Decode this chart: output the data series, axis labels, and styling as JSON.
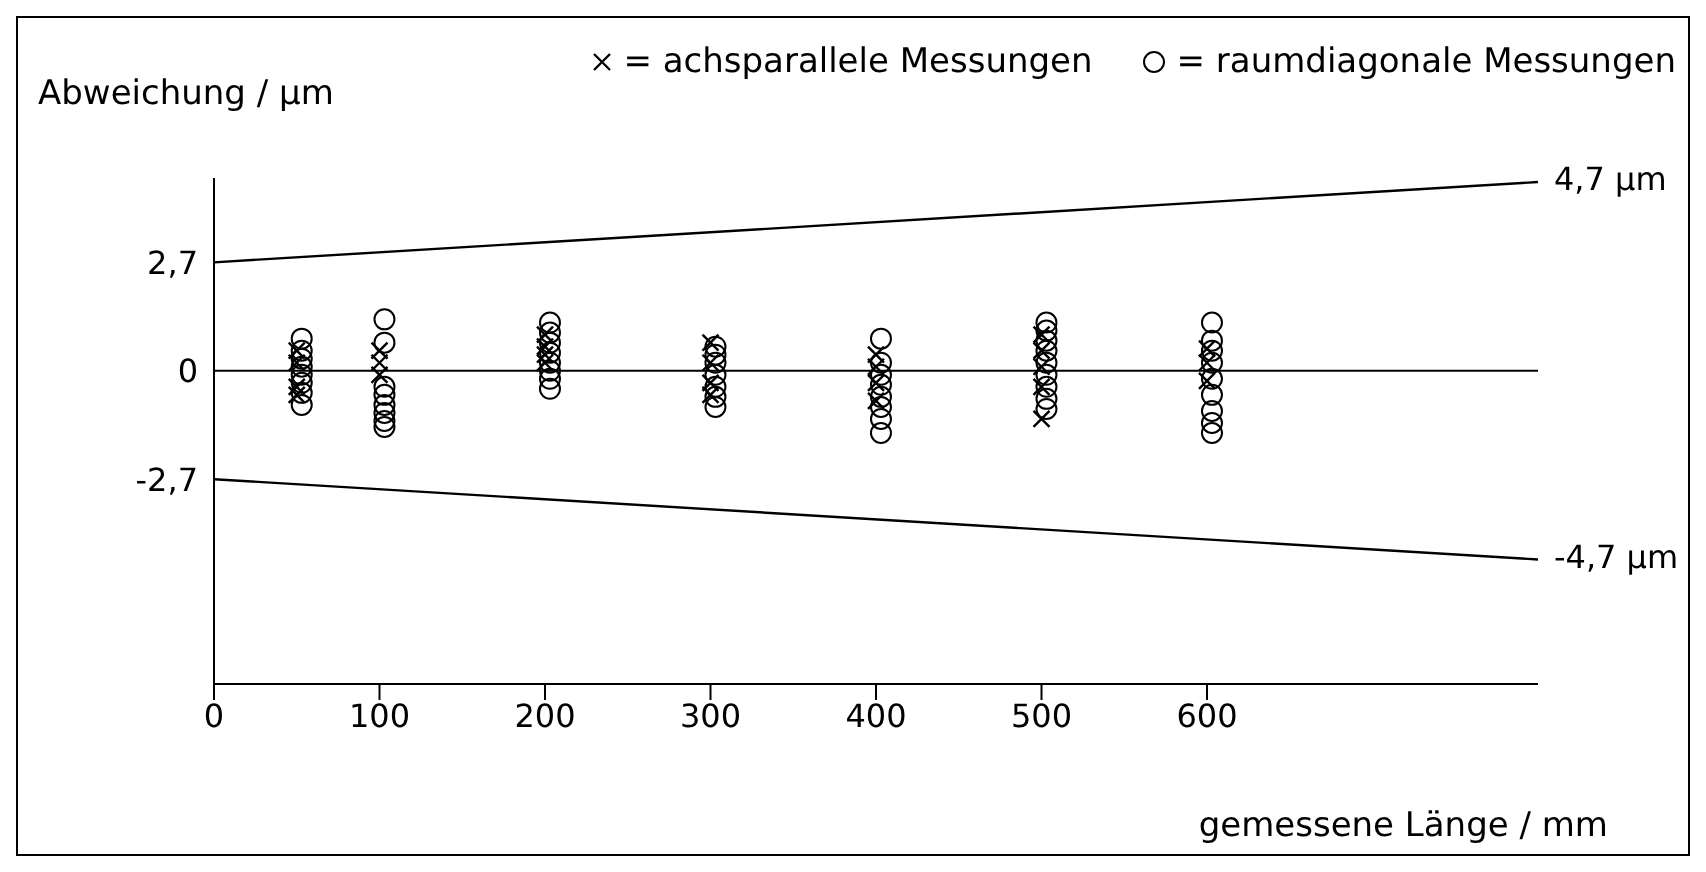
{
  "chart_data": {
    "type": "scatter",
    "ylabel": "Abweichung / µm",
    "xlabel": "gemessene Länge / mm",
    "xlim": [
      0,
      800
    ],
    "xticks": [
      0,
      100,
      200,
      300,
      400,
      500,
      600
    ],
    "ylim": [
      -7.8,
      4.8
    ],
    "yticks": [
      {
        "value": 2.7,
        "label": "2,7"
      },
      0,
      {
        "value": -2.7,
        "label": "-2,7"
      }
    ],
    "grid": false,
    "legend": "top right",
    "series": [
      {
        "name": "= achsparallele Messungen",
        "type": "scatter",
        "marker": "cross",
        "color": "#000000",
        "x": [
          50,
          50,
          50,
          50,
          100,
          100,
          100,
          200,
          200,
          200,
          200,
          300,
          300,
          300,
          300,
          400,
          400,
          400,
          400,
          500,
          500,
          500,
          500,
          500,
          600,
          600,
          600
        ],
        "values": [
          0.5,
          0.2,
          -0.4,
          -0.6,
          0.5,
          0.2,
          -0.1,
          0.9,
          0.6,
          0.4,
          0.2,
          0.7,
          0.2,
          -0.3,
          -0.6,
          0.4,
          0.1,
          -0.3,
          -0.75,
          0.9,
          0.5,
          0.1,
          -0.4,
          -1.2,
          0.55,
          0.2,
          -0.25
        ]
      },
      {
        "name": "= raumdiagonale Messungen",
        "type": "scatter",
        "marker": "circle",
        "color": "#000000",
        "x": [
          53,
          53,
          53,
          53,
          53,
          53,
          53,
          53,
          103,
          103,
          103,
          103,
          103,
          103,
          103,
          103,
          203,
          203,
          203,
          203,
          203,
          203,
          203,
          203,
          303,
          303,
          303,
          303,
          303,
          303,
          303,
          403,
          403,
          403,
          403,
          403,
          403,
          403,
          403,
          503,
          503,
          503,
          503,
          503,
          503,
          503,
          503,
          503,
          603,
          603,
          603,
          603,
          603,
          603,
          603,
          603,
          603
        ],
        "values": [
          0.8,
          0.5,
          0.3,
          0.1,
          -0.1,
          -0.3,
          -0.55,
          -0.85,
          1.28,
          0.7,
          -0.4,
          -0.6,
          -0.85,
          -1.05,
          -1.25,
          -1.4,
          1.2,
          0.95,
          0.7,
          0.45,
          0.2,
          0,
          -0.2,
          -0.45,
          0.6,
          0.4,
          0.2,
          -0.1,
          -0.4,
          -0.65,
          -0.9,
          0.8,
          0.2,
          -0.1,
          -0.35,
          -0.65,
          -0.9,
          -1.2,
          -1.55,
          1.2,
          1.0,
          0.75,
          0.5,
          0.2,
          -0.1,
          -0.4,
          -0.7,
          -0.95,
          1.2,
          0.75,
          0.5,
          0.2,
          -0.2,
          -0.6,
          -1.0,
          -1.3,
          -1.55
        ]
      },
      {
        "type": "line",
        "marker": "none",
        "line_style": "solid",
        "color": "#000000",
        "x": [
          0,
          800
        ],
        "values": [
          2.7,
          4.7
        ]
      },
      {
        "type": "line",
        "marker": "none",
        "line_style": "solid",
        "color": "#000000",
        "x": [
          0,
          800
        ],
        "values": [
          -2.7,
          -4.7
        ]
      }
    ],
    "ref_lines": [
      {
        "axis": "y",
        "value": 0,
        "color": "#000000"
      }
    ],
    "annotations": [
      {
        "text": "4,7 µm",
        "x": 800,
        "y": 4.7
      },
      {
        "text": "-4,7 µm",
        "x": 800,
        "y": -4.7
      }
    ]
  }
}
